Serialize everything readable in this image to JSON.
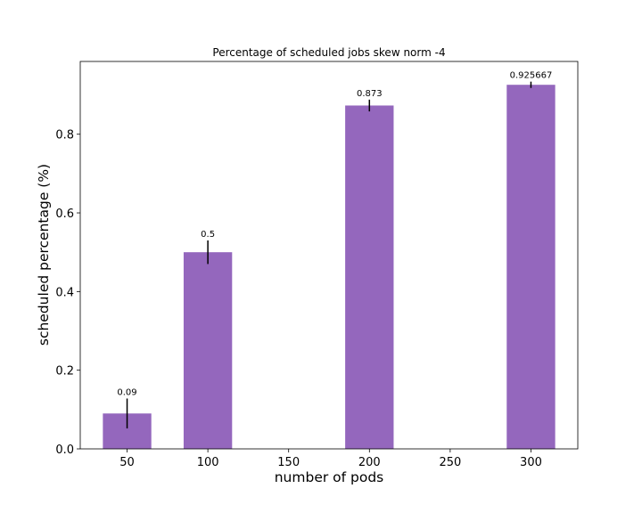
{
  "chart_data": {
    "type": "bar",
    "title": "Percentage of scheduled jobs skew norm -4",
    "xlabel": "number of pods",
    "ylabel": "scheduled percentage (%)",
    "x": [
      50,
      100,
      200,
      300
    ],
    "values": [
      0.09,
      0.5,
      0.873,
      0.925667
    ],
    "value_labels": [
      "0.09",
      "0.5",
      "0.873",
      "0.925667"
    ],
    "error": [
      0.038,
      0.03,
      0.015,
      0.008
    ],
    "xlim": [
      21,
      329
    ],
    "ylim": [
      0,
      0.985
    ],
    "xticks": [
      50,
      100,
      150,
      200,
      250,
      300
    ],
    "xtick_labels": [
      "50",
      "100",
      "150",
      "200",
      "250",
      "300"
    ],
    "yticks": [
      0,
      0.2,
      0.4,
      0.6,
      0.8
    ],
    "ytick_labels": [
      "0.0",
      "0.2",
      "0.4",
      "0.6",
      "0.8"
    ],
    "bar_width": 30,
    "bar_color": "#9467bd",
    "error_color": "#000000",
    "grid": false,
    "legend": false
  }
}
